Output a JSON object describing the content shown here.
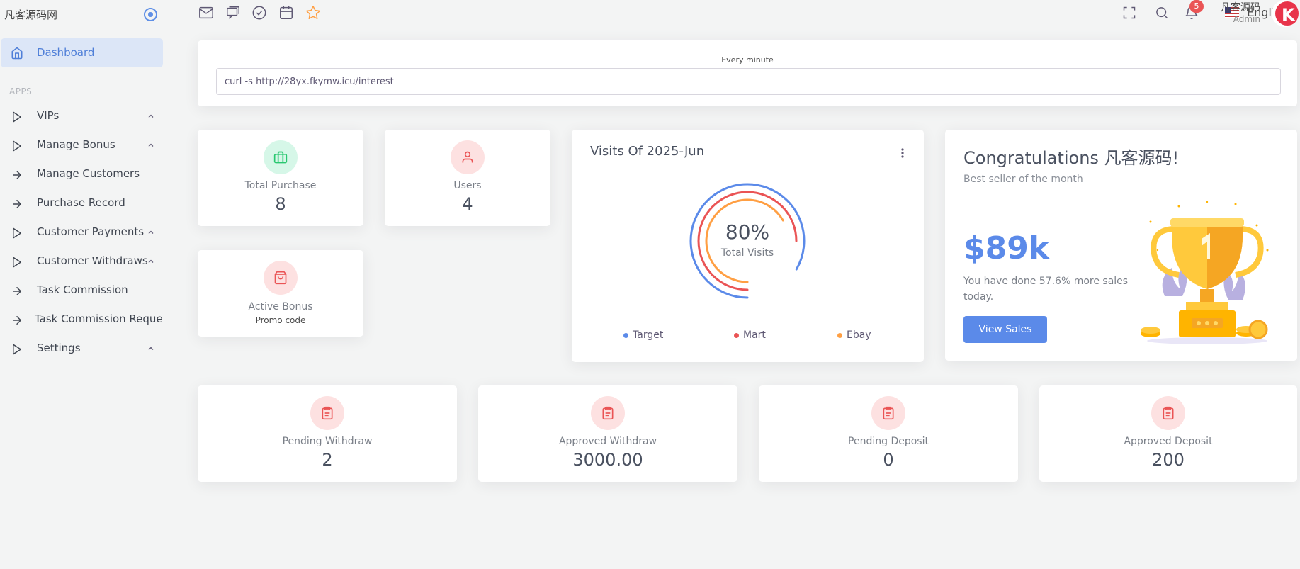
{
  "sidebar": {
    "brand": "凡客源码网",
    "active_item": "Dashboard",
    "section_label": "APPS",
    "items": [
      {
        "label": "VIPs",
        "icon": "play-icon",
        "chevron": true
      },
      {
        "label": "Manage Bonus",
        "icon": "play-icon",
        "chevron": true
      },
      {
        "label": "Manage Customers",
        "icon": "arrow-right-icon",
        "chevron": false
      },
      {
        "label": "Purchase Record",
        "icon": "arrow-right-icon",
        "chevron": false
      },
      {
        "label": "Customer Payments",
        "icon": "play-icon",
        "chevron": true
      },
      {
        "label": "Customer Withdraws",
        "icon": "play-icon",
        "chevron": true
      },
      {
        "label": "Task Commission",
        "icon": "arrow-right-icon",
        "chevron": false
      },
      {
        "label": "Task Commission Reques",
        "icon": "arrow-right-icon",
        "chevron": false
      },
      {
        "label": "Settings",
        "icon": "play-icon",
        "chevron": true
      }
    ]
  },
  "topbar": {
    "language": "English",
    "notifications_count": "5",
    "user_name": "凡客源码",
    "user_role": "Admin"
  },
  "cron": {
    "label": "Every minute",
    "command": "curl -s http://28yx.fkymw.icu/interest"
  },
  "stats": {
    "total_purchase": {
      "label": "Total Purchase",
      "value": "8"
    },
    "users": {
      "label": "Users",
      "value": "4"
    },
    "active_bonus": {
      "label": "Active Bonus",
      "sub": "Promo code"
    },
    "pending_withdraw": {
      "label": "Pending Withdraw",
      "value": "2"
    },
    "approved_withdraw": {
      "label": "Approved Withdraw",
      "value": "3000.00"
    },
    "pending_deposit": {
      "label": "Pending Deposit",
      "value": "0"
    },
    "approved_deposit": {
      "label": "Approved Deposit",
      "value": "200"
    }
  },
  "visits": {
    "title": "Visits Of 2025-Jun",
    "center_value": "80%",
    "center_label": "Total Visits",
    "legend": [
      "Target",
      "Mart",
      "Ebay"
    ]
  },
  "congrats": {
    "title": "Congratulations 凡客源码!",
    "subtitle": "Best seller of the month",
    "amount": "$89k",
    "description": "You have done 57.6% more sales today.",
    "button": "View Sales"
  },
  "colors": {
    "primary": "#5b8ae9",
    "success_bg": "#d6f7e8",
    "success": "#28c76f",
    "danger_bg": "#fde1e1",
    "danger": "#ea5455",
    "warning": "#ff9f43"
  },
  "chart_data": {
    "type": "radialBar",
    "categories": [
      "Target",
      "Mart",
      "Ebay"
    ],
    "center_value": "80%",
    "colors": [
      "#5b8ae9",
      "#ea5455",
      "#ff9f43"
    ]
  }
}
